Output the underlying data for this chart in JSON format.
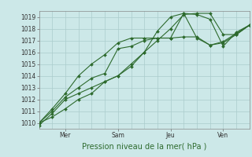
{
  "title": "",
  "xlabel": "Pression niveau de la mer( hPa )",
  "bg_color": "#cce8e8",
  "grid_color": "#aacccc",
  "line_color": "#2d6a2d",
  "ylim": [
    1009.5,
    1019.5
  ],
  "xlim": [
    0,
    96
  ],
  "day_ticks": [
    12,
    36,
    60,
    84
  ],
  "day_labels": [
    "Mer",
    "Sam",
    "Jeu",
    "Ven"
  ],
  "yticks": [
    1010,
    1011,
    1012,
    1013,
    1014,
    1015,
    1016,
    1017,
    1018,
    1019
  ],
  "xticks_minor": [
    0,
    6,
    12,
    18,
    24,
    30,
    36,
    42,
    48,
    54,
    60,
    66,
    72,
    78,
    84,
    90,
    96
  ],
  "series": [
    {
      "x": [
        0,
        6,
        12,
        18,
        24,
        30,
        36,
        42,
        48,
        54,
        60,
        66,
        72,
        78,
        84,
        90,
        96
      ],
      "y": [
        1009.8,
        1010.8,
        1012.0,
        1012.5,
        1013.0,
        1013.5,
        1014.0,
        1015.0,
        1016.0,
        1017.0,
        1018.0,
        1019.2,
        1019.3,
        1019.3,
        1017.5,
        1017.5,
        1018.3
      ]
    },
    {
      "x": [
        0,
        6,
        12,
        18,
        24,
        30,
        36,
        42,
        48,
        54,
        60,
        66,
        72,
        78,
        84,
        90,
        96
      ],
      "y": [
        1010.0,
        1011.0,
        1012.2,
        1013.0,
        1013.8,
        1014.2,
        1016.3,
        1016.5,
        1017.0,
        1017.2,
        1017.2,
        1019.3,
        1019.2,
        1018.8,
        1016.5,
        1017.7,
        1018.3
      ]
    },
    {
      "x": [
        0,
        6,
        12,
        18,
        24,
        30,
        36,
        42,
        48,
        54,
        60,
        66,
        72,
        78,
        84,
        90,
        96
      ],
      "y": [
        1010.0,
        1010.5,
        1011.2,
        1012.0,
        1012.5,
        1013.5,
        1014.0,
        1014.8,
        1016.0,
        1017.8,
        1019.0,
        1019.3,
        1017.2,
        1016.6,
        1016.8,
        1017.5,
        1018.3
      ]
    },
    {
      "x": [
        0,
        6,
        12,
        18,
        24,
        30,
        36,
        42,
        48,
        54,
        60,
        66,
        72,
        78,
        84,
        90,
        96
      ],
      "y": [
        1010.0,
        1011.2,
        1012.5,
        1014.0,
        1015.0,
        1015.8,
        1016.8,
        1017.2,
        1017.2,
        1017.2,
        1017.2,
        1017.3,
        1017.3,
        1016.6,
        1016.9,
        1017.6,
        1018.3
      ]
    }
  ],
  "marker": "D",
  "marker_size": 2.0,
  "line_width": 0.8,
  "xlabel_fontsize": 7,
  "tick_fontsize": 5.5
}
